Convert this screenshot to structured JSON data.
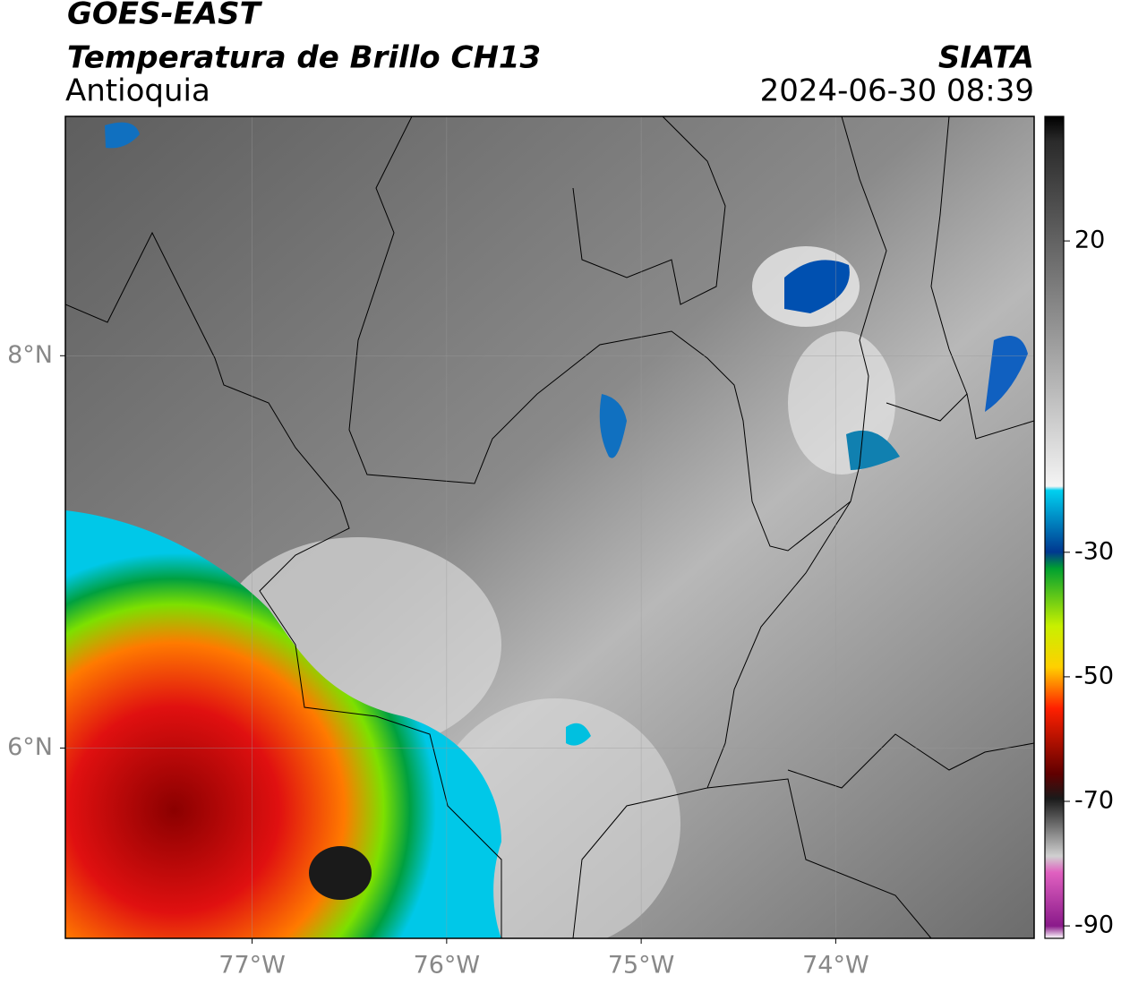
{
  "header": {
    "satellite": "GOES-EAST",
    "product": "Temperatura de Brillo CH13",
    "region": "Antioquia",
    "source": "SIATA",
    "datetime": "2024-06-30 08:39"
  },
  "map": {
    "xlim": [
      -77.96,
      -72.98
    ],
    "ylim": [
      5.03,
      9.22
    ],
    "xticks": [
      {
        "value": -77,
        "label": "77°W"
      },
      {
        "value": -76,
        "label": "76°W"
      },
      {
        "value": -75,
        "label": "75°W"
      },
      {
        "value": -74,
        "label": "74°W"
      }
    ],
    "yticks": [
      {
        "value": 8,
        "label": "8°N"
      },
      {
        "value": 6,
        "label": "6°N"
      }
    ]
  },
  "colorbar": {
    "lim": [
      -92,
      40
    ],
    "ticks": [
      20,
      -30,
      -50,
      -70,
      -90
    ]
  }
}
